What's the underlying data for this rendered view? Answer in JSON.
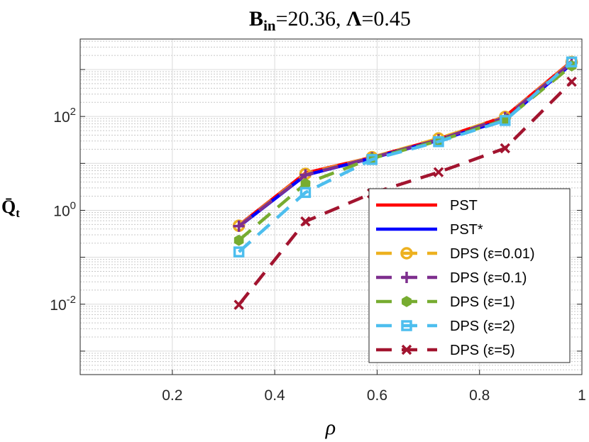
{
  "chart_data": {
    "type": "line",
    "title_parts": {
      "b": "B",
      "b_sub": "in",
      "b_value": "=20.36, ",
      "lambda": "Λ",
      "lambda_value": "=0.45"
    },
    "xlabel": "ρ",
    "ylabel_parts": {
      "q": "Q̄",
      "sub": "t"
    },
    "xlim": [
      0.02,
      1.0
    ],
    "ylim_log10": [
      -3.5,
      3.65
    ],
    "y_scale": "log",
    "grid": true,
    "minor_grid": true,
    "legend_placement": "bottom-right",
    "x_ticks": [
      {
        "value": 0.2,
        "label": "0.2"
      },
      {
        "value": 0.4,
        "label": "0.4"
      },
      {
        "value": 0.6,
        "label": "0.6"
      },
      {
        "value": 0.8,
        "label": "0.8"
      },
      {
        "value": 1.0,
        "label": "1"
      }
    ],
    "y_ticks": [
      {
        "exp": 2,
        "base": "10",
        "sup": "2"
      },
      {
        "exp": 0,
        "base": "10",
        "sup": "0"
      },
      {
        "exp": -2,
        "base": "10",
        "sup": "-2"
      }
    ],
    "x": [
      0.33,
      0.46,
      0.59,
      0.72,
      0.85,
      0.98
    ],
    "series": [
      {
        "name": "PST",
        "color": "#ff0000",
        "style": "solid",
        "marker": "none",
        "values": [
          0.48,
          6.2,
          13.5,
          33,
          100,
          1500
        ]
      },
      {
        "name": "PST*",
        "color": "#0000ff",
        "style": "solid",
        "marker": "none",
        "values": [
          0.45,
          5.6,
          13,
          31,
          85,
          1320
        ]
      },
      {
        "name": "DPS (ε=0.01)",
        "color": "#edb120",
        "style": "dashed",
        "marker": "circle",
        "values": [
          0.47,
          6.0,
          13.5,
          34,
          98,
          1450
        ]
      },
      {
        "name": "DPS (ε=0.1)",
        "color": "#7e2f8e",
        "style": "dashed",
        "marker": "plus",
        "values": [
          0.46,
          5.7,
          13.2,
          32,
          95,
          1400
        ]
      },
      {
        "name": "DPS (ε=1)",
        "color": "#77ac30",
        "style": "dashed",
        "marker": "hexagon",
        "values": [
          0.23,
          3.7,
          12.8,
          30,
          85,
          1200
        ]
      },
      {
        "name": "DPS (ε=2)",
        "color": "#4dbeee",
        "style": "dashed",
        "marker": "square",
        "values": [
          0.13,
          2.4,
          12.1,
          29,
          82,
          1450
        ]
      },
      {
        "name": "DPS (ε=5)",
        "color": "#a2142f",
        "style": "dashed",
        "marker": "x",
        "values": [
          0.0097,
          0.58,
          2.3,
          6.5,
          21,
          550
        ]
      }
    ]
  }
}
